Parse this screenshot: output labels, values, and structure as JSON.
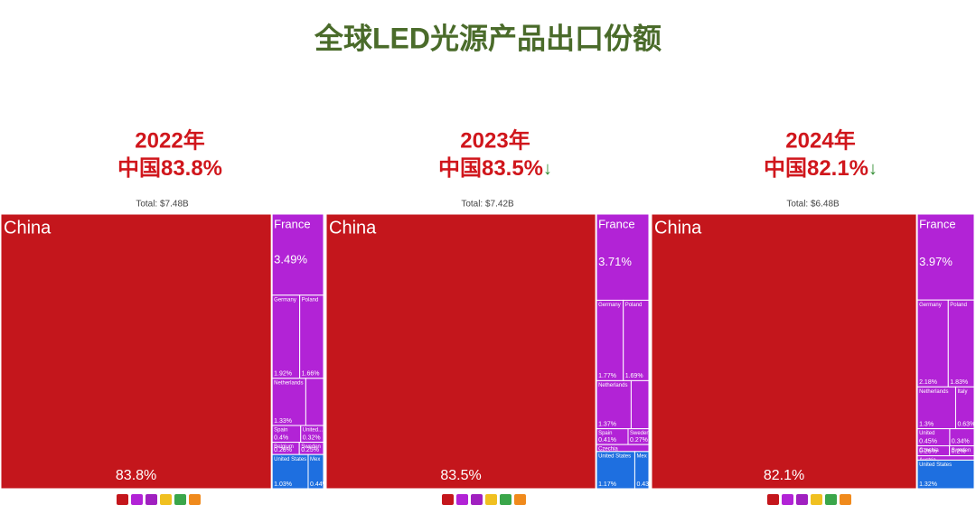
{
  "title": "全球LED光源产品出口份额",
  "chart_data": [
    {
      "type": "treemap",
      "heading": "2022年",
      "headline": "中国83.8%",
      "total": "Total: $7.48B",
      "categories": [
        "China",
        "France",
        "Germany",
        "Poland",
        "Netherlands",
        null,
        "Spain",
        "United...",
        "Belgium",
        "Sweden",
        "United States",
        "Mex"
      ],
      "values": [
        83.8,
        3.49,
        1.92,
        1.66,
        1.33,
        0.7,
        0.4,
        0.32,
        0.28,
        0.25,
        1.03,
        0.44
      ],
      "value_labels": [
        "83.8%",
        "3.49%",
        "1.92%",
        "1.66%",
        "1.33%",
        null,
        "0.4%",
        "0.32%",
        "0.28%",
        "0.25%",
        "1.03%",
        "0.44%"
      ],
      "colors": [
        "#c4161c",
        "#b223d6",
        "#b223d6",
        "#b223d6",
        "#b223d6",
        "#b223d6",
        "#b223d6",
        "#b223d6",
        "#b223d6",
        "#b223d6",
        "#1e6fe0",
        "#1e6fe0"
      ]
    },
    {
      "type": "treemap",
      "heading": "2023年",
      "headline": "中国83.5%",
      "trend": "↓",
      "total": "Total: $7.42B",
      "categories": [
        "China",
        "France",
        "Germany",
        "Poland",
        "Netherlands",
        null,
        "Spain",
        "Sweden",
        "Czechia",
        "United States",
        "Mex"
      ],
      "values": [
        83.5,
        3.71,
        1.77,
        1.69,
        1.37,
        0.7,
        0.41,
        0.27,
        0.3,
        1.17,
        0.43
      ],
      "value_labels": [
        "83.5%",
        "3.71%",
        "1.77%",
        "1.69%",
        "1.37%",
        null,
        "0.41%",
        "0.27%",
        null,
        "1.17%",
        "0.43%"
      ],
      "colors": [
        "#c4161c",
        "#b223d6",
        "#b223d6",
        "#b223d6",
        "#b223d6",
        "#b223d6",
        "#b223d6",
        "#b223d6",
        "#b223d6",
        "#1e6fe0",
        "#1e6fe0"
      ]
    },
    {
      "type": "treemap",
      "heading": "2024年",
      "headline": "中国82.1%",
      "trend": "↓",
      "total": "Total: $6.48B",
      "categories": [
        "China",
        "France",
        "Germany",
        "Poland",
        "Netherlands",
        "Italy",
        "United",
        null,
        "Czechia",
        "Sweden",
        "Austria",
        "United States"
      ],
      "values": [
        82.1,
        3.97,
        2.18,
        1.83,
        1.3,
        0.63,
        0.45,
        0.34,
        0.26,
        0.2,
        0.2,
        1.32
      ],
      "value_labels": [
        "82.1%",
        "3.97%",
        "2.18%",
        "1.83%",
        "1.3%",
        "0.63%",
        "0.45%",
        "0.34%",
        "0.26%",
        "0.2%",
        null,
        "1.32%"
      ],
      "colors": [
        "#c4161c",
        "#b223d6",
        "#b223d6",
        "#b223d6",
        "#b223d6",
        "#b223d6",
        "#b223d6",
        "#b223d6",
        "#b223d6",
        "#b223d6",
        "#b223d6",
        "#1e6fe0"
      ]
    }
  ]
}
